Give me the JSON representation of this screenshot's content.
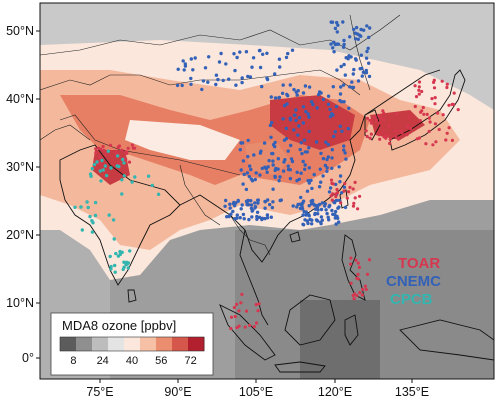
{
  "map": {
    "lat_ticks": [
      "50°N",
      "40°N",
      "30°N",
      "20°N",
      "10°N",
      "0°"
    ],
    "lon_ticks": [
      "75°E",
      "90°E",
      "105°E",
      "120°E",
      "135°E"
    ],
    "colorbar": {
      "title": "MDA8 ozone [ppbv]",
      "ticks": [
        "8",
        "24",
        "40",
        "56",
        "72"
      ],
      "colors": [
        "#5c5c5c",
        "#8f8f8f",
        "#bdbdbd",
        "#e4e4e4",
        "#fbe7dc",
        "#f6c0a6",
        "#eb8d6f",
        "#d5564b",
        "#b21f2e"
      ]
    },
    "networks": [
      {
        "name": "TOAR",
        "color": "#d6374f"
      },
      {
        "name": "CNEMC",
        "color": "#3361b8"
      },
      {
        "name": "CPCB",
        "color": "#33b5b0"
      }
    ]
  }
}
